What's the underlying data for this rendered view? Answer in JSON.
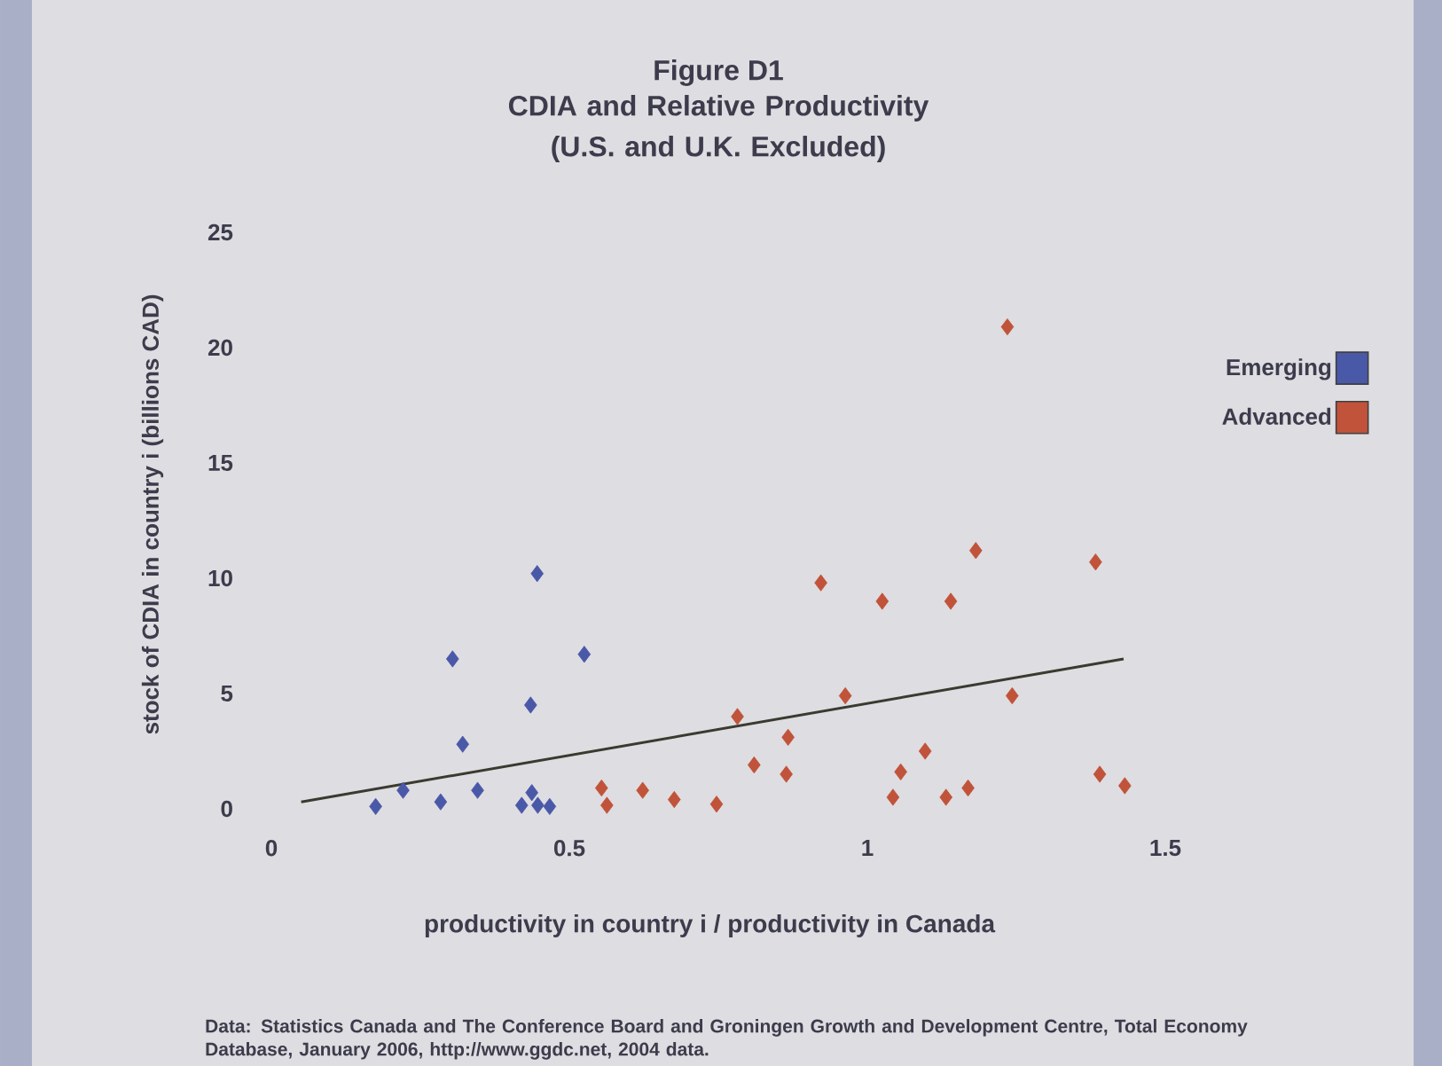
{
  "chart_data": {
    "type": "scatter",
    "title": "Figure D1",
    "subtitle": "CDIA and Relative Productivity (U.S. and U.K. Excluded)",
    "xlabel": "productivity in country i / productivity in Canada",
    "ylabel": "stock of CDIA in country i (billions CAD)",
    "annotations": [
      "Data:  Statistics Canada and The Conference Board and Groningen Growth and Development Centre, Total Economy Database, January 2006, http://www.ggdc.net,  2004 data."
    ],
    "xlim": [
      0,
      1.5
    ],
    "ylim": [
      0,
      25
    ],
    "xticks": [
      0,
      0.5,
      1,
      1.5
    ],
    "yticks": [
      0,
      5,
      10,
      15,
      20,
      25
    ],
    "marker": "diamond",
    "legend": "right",
    "grid": false,
    "series": [
      {
        "name": "Emerging",
        "color": "#4a58a8",
        "x": [
          0.446,
          0.304,
          0.525,
          0.435,
          0.321,
          0.221,
          0.175,
          0.284,
          0.346,
          0.437,
          0.42,
          0.447,
          0.467
        ],
        "values": [
          10.2,
          6.5,
          6.7,
          4.5,
          2.8,
          0.8,
          0.1,
          0.3,
          0.8,
          0.7,
          0.15,
          0.15,
          0.1
        ]
      },
      {
        "name": "Advanced",
        "color": "#c0533a",
        "x": [
          0.554,
          0.563,
          0.623,
          0.676,
          1.182,
          1.383,
          0.922,
          1.025,
          1.14,
          0.963,
          1.243,
          0.782,
          0.867,
          0.81,
          0.864,
          1.097,
          1.056,
          1.043,
          1.132,
          1.169,
          1.39,
          1.432,
          0.747,
          1.235
        ],
        "values": [
          0.9,
          0.15,
          0.8,
          0.4,
          11.2,
          10.7,
          9.8,
          9.0,
          9.0,
          4.9,
          4.9,
          4.0,
          3.1,
          1.9,
          1.5,
          2.5,
          1.6,
          0.5,
          0.5,
          0.9,
          1.5,
          1.0,
          0.2,
          20.9
        ]
      },
      {
        "type": "line",
        "marker": "none",
        "color": "#3a3a30",
        "x": [
          0.05,
          1.43
        ],
        "values": [
          0.3,
          6.5
        ]
      }
    ]
  }
}
